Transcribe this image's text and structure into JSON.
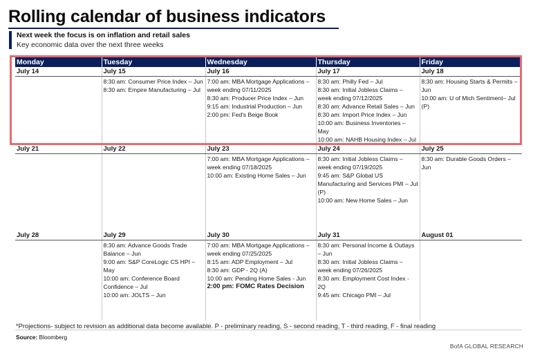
{
  "title": "Rolling calendar of business indicators",
  "subtitle": "Next week the focus is on inflation and retail sales",
  "description": "Key economic data over the next three weeks",
  "days": [
    "Monday",
    "Tuesday",
    "Wednesday",
    "Thursday",
    "Friday"
  ],
  "weeks": [
    {
      "dates": [
        "July 14",
        "July 15",
        "July 16",
        "July 17",
        "July 18"
      ],
      "events": [
        [],
        [
          "8:30 am: Consumer Price Index – Jun",
          "8:30 am: Empire Manufacturing – Jul"
        ],
        [
          "7:00 am: MBA Mortgage Applications – week ending 07/11/2025",
          "8:30 am: Producer Price Index – Jun",
          "9:15 am: Industrial Production – Jun",
          "2:00 pm: Fed's Beige Book"
        ],
        [
          "8:30 am: Philly Fed – Jul",
          "8:30 am: Initial Jobless Claims – week ending 07/12/2025",
          "8:30 am: Advance Retail Sales – Jun",
          "8:30 am: Import Price Index – Jun",
          "10:00 am: Business Inventories – May",
          "10:00 am: NAHB Housing Index – Jul"
        ],
        [
          "8:30 am: Housing Starts & Permits – Jun",
          "10:00 am: U of Mich Sentiment– Jul (P)"
        ]
      ]
    },
    {
      "dates": [
        "July 21",
        "July 22",
        "July 23",
        "July 24",
        "July 25"
      ],
      "events": [
        [],
        [],
        [
          "7:00 am: MBA Mortgage Applications – week ending 07/18/2025",
          "10:00 am: Existing Home Sales – Jun"
        ],
        [
          "8:30 am: Initial Jobless Claims – week ending 07/19/2025",
          "9:45 am: S&P Global US Manufacturing and Services PMI – Jul (P)",
          "10:00 am: New Home Sales – Jun"
        ],
        [
          "8:30 am: Durable Goods Orders – Jun"
        ]
      ]
    },
    {
      "dates": [
        "July 28",
        "July 29",
        "July 30",
        "July 31",
        "August 01"
      ],
      "events": [
        [],
        [
          "8:30 am: Advance Goods Trade Balance – Jun",
          "9:00 am: S&P CoreLogic CS HPI – May",
          "10:00 am: Conference Board Confidence – Jul",
          "10:00 am: JOLTS – Jun"
        ],
        [
          "7:00 am: MBA Mortgage Applications – week ending 07/25/2025",
          "8:15 am: ADP Employment – Jul",
          "8:30 am: GDP - 2Q (A)",
          "10:00 am: Pending Home Sales - Jun",
          "2:00 pm: FOMC Rates Decision"
        ],
        [
          "8:30 am: Personal Income & Outlays – Jun",
          "8:30 am: Initial Jobless Claims – week ending 07/26/2025",
          "8:30 am: Employment Cost Index - 2Q",
          "9:45 am: Chicago PMI – Jul"
        ],
        []
      ]
    }
  ],
  "footnote": "*Projections- subject to revision as additional data become available. P - preliminary reading, S - second reading, T - third reading, F - final reading",
  "source_label": "Source:",
  "source_value": "Bloomberg",
  "brand": "BofA GLOBAL RESEARCH",
  "colors": {
    "header_bg": "#0b1f5c",
    "highlight": "#e46b6f"
  }
}
